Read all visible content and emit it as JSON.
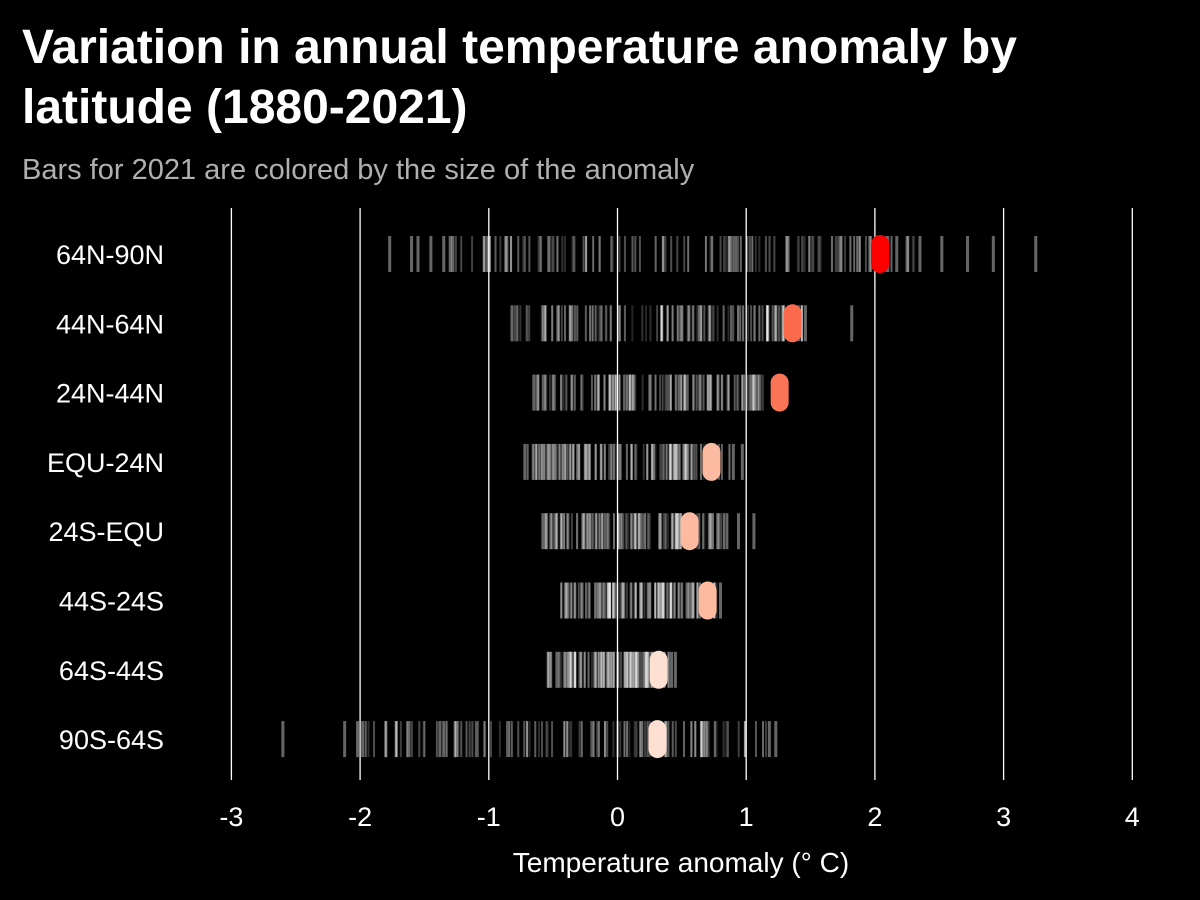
{
  "chart_data": {
    "type": "strip",
    "title": "Variation in annual temperature anomaly by latitude (1880-2021)",
    "subtitle": "Bars for 2021 are colored by the size of the anomaly",
    "xlabel": "Temperature anomaly (° C)",
    "ylabel": "",
    "xlim": [
      -3,
      4
    ],
    "x_ticks": [
      -3,
      -2,
      -1,
      0,
      1,
      2,
      3,
      4
    ],
    "x_tick_labels": [
      "-3",
      "-2",
      "-1",
      "0",
      "1",
      "2",
      "3",
      "4"
    ],
    "grid": "vertical",
    "colors": {
      "background": "#000000",
      "gridline": "#ffffff",
      "historical_bar": "#ffffff",
      "highlight_scale": [
        "#fde0d2",
        "#fcbba1",
        "#fb8e6e",
        "#fb6a4a",
        "#ff0000"
      ]
    },
    "bands": [
      {
        "label": "64N-90N",
        "range": [
          -1.77,
          3.25
        ],
        "outliers": [
          -1.77,
          -1.6,
          -1.55,
          -1.45,
          -1.35,
          -1.3,
          -1.28,
          1.73,
          2.05,
          2.1,
          2.17,
          2.25,
          2.35,
          2.52,
          2.72,
          2.92,
          3.25
        ],
        "value_2021": 2.04,
        "color_2021": "#ff0000"
      },
      {
        "label": "44N-64N",
        "range": [
          -0.82,
          1.82
        ],
        "outliers": [
          -0.82,
          1.46,
          1.82
        ],
        "value_2021": 1.36,
        "color_2021": "#fb6a4a"
      },
      {
        "label": "24N-44N",
        "range": [
          -0.65,
          1.1
        ],
        "outliers": [
          -0.65,
          0.98,
          1.05,
          1.1
        ],
        "value_2021": 1.26,
        "color_2021": "#fb7455"
      },
      {
        "label": "EQU-24N",
        "range": [
          -0.72,
          1.0
        ],
        "outliers": [
          -0.72,
          0.9,
          0.97
        ],
        "value_2021": 0.73,
        "color_2021": "#fcbba1"
      },
      {
        "label": "24S-EQU",
        "range": [
          -0.58,
          1.06
        ],
        "outliers": [
          -0.58,
          0.85,
          0.94,
          1.06
        ],
        "value_2021": 0.56,
        "color_2021": "#fcbba1"
      },
      {
        "label": "44S-24S",
        "range": [
          -0.46,
          0.8
        ],
        "outliers": [
          0.8
        ],
        "value_2021": 0.7,
        "color_2021": "#fcbba1"
      },
      {
        "label": "64S-44S",
        "range": [
          -0.57,
          0.45
        ],
        "outliers": [
          0.42,
          0.45
        ],
        "value_2021": 0.32,
        "color_2021": "#fde0d2"
      },
      {
        "label": "90S-64S",
        "range": [
          -2.6,
          1.23
        ],
        "outliers": [
          -2.6,
          -2.12,
          -2.02,
          -1.98,
          -1.8,
          -1.72,
          -1.62,
          -1.38,
          -1.35,
          -1.25,
          1.18,
          1.23
        ],
        "value_2021": 0.31,
        "color_2021": "#fde0d2"
      }
    ]
  }
}
